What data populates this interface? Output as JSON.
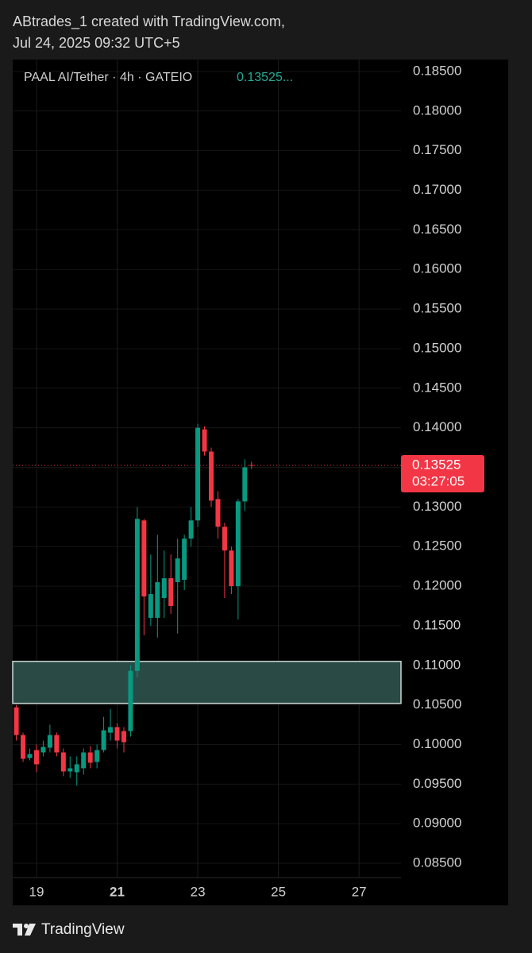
{
  "header": {
    "line1": "ABtrades_1 created with TradingView.com,",
    "line2": "Jul 24, 2025 09:32 UTC+5"
  },
  "chart_data": {
    "type": "candlestick",
    "legend": {
      "symbol": "PAAL AI/Tether · 4h · GATEIO",
      "last": "0.13525..."
    },
    "x": [
      18.5,
      18.6667,
      18.8333,
      19,
      19.1667,
      19.3333,
      19.5,
      19.6667,
      19.8333,
      20,
      20.1667,
      20.3333,
      20.5,
      20.6667,
      20.8333,
      21,
      21.1667,
      21.3333,
      21.5,
      21.6667,
      21.8333,
      22,
      22.1667,
      22.3333,
      22.5,
      22.6667,
      22.8333,
      23,
      23.1667,
      23.3333,
      23.5,
      23.6667,
      23.8333,
      24,
      24.1667,
      24.3333
    ],
    "open": [
      0.1047,
      0.1012,
      0.0983,
      0.0993,
      0.099,
      0.0996,
      0.1012,
      0.099,
      0.0966,
      0.0965,
      0.097,
      0.099,
      0.0978,
      0.0993,
      0.1015,
      0.1022,
      0.1017,
      0.1017,
      0.1093,
      0.1283,
      0.116,
      0.116,
      0.1185,
      0.121,
      0.1205,
      0.1208,
      0.126,
      0.1283,
      0.1398,
      0.137,
      0.131,
      0.1275,
      0.1245,
      0.12,
      0.1307,
      0.1353
    ],
    "high": [
      0.105,
      0.1015,
      0.0995,
      0.1,
      0.1005,
      0.1025,
      0.1015,
      0.0995,
      0.0985,
      0.0985,
      0.0995,
      0.0998,
      0.1,
      0.1035,
      0.1045,
      0.1027,
      0.1022,
      0.11,
      0.13,
      0.1285,
      0.124,
      0.1265,
      0.1245,
      0.124,
      0.126,
      0.1265,
      0.13,
      0.1405,
      0.1402,
      0.1375,
      0.132,
      0.128,
      0.125,
      0.131,
      0.136,
      0.1357
    ],
    "low": [
      0.1005,
      0.0978,
      0.098,
      0.0965,
      0.0985,
      0.099,
      0.0985,
      0.096,
      0.0958,
      0.0948,
      0.0962,
      0.097,
      0.097,
      0.099,
      0.1005,
      0.0995,
      0.099,
      0.101,
      0.1085,
      0.1138,
      0.115,
      0.1135,
      0.116,
      0.1165,
      0.114,
      0.1195,
      0.125,
      0.1275,
      0.1365,
      0.13,
      0.126,
      0.1185,
      0.119,
      0.1158,
      0.1295,
      0.1348
    ],
    "close": [
      0.1012,
      0.0982,
      0.0988,
      0.0975,
      0.0997,
      0.1012,
      0.099,
      0.0966,
      0.097,
      0.0975,
      0.099,
      0.0977,
      0.0993,
      0.1018,
      0.1022,
      0.1005,
      0.1003,
      0.1093,
      0.1285,
      0.1187,
      0.119,
      0.1205,
      0.121,
      0.1175,
      0.1235,
      0.126,
      0.1283,
      0.14,
      0.137,
      0.1308,
      0.1275,
      0.1245,
      0.12,
      0.1307,
      0.135,
      0.13525
    ],
    "up_color": "#089981",
    "down_color": "#f23645",
    "xlim": [
      18.41,
      28.04
    ],
    "xticks": [
      19,
      21,
      23,
      25,
      27
    ],
    "bold_xticks": [
      21
    ],
    "ylim": [
      0.0832,
      0.1865
    ],
    "yticks": [
      {
        "value": 0.085,
        "label": "0.08500"
      },
      {
        "value": 0.09,
        "label": "0.09000"
      },
      {
        "value": 0.095,
        "label": "0.09500"
      },
      {
        "value": 0.1,
        "label": "0.10000"
      },
      {
        "value": 0.105,
        "label": "0.10500"
      },
      {
        "value": 0.11,
        "label": "0.11000"
      },
      {
        "value": 0.115,
        "label": "0.11500"
      },
      {
        "value": 0.12,
        "label": "0.12000"
      },
      {
        "value": 0.125,
        "label": "0.12500"
      },
      {
        "value": 0.13,
        "label": "0.13000"
      },
      {
        "value": 0.135,
        "label": "0.13500"
      },
      {
        "value": 0.14,
        "label": "0.14000"
      },
      {
        "value": 0.145,
        "label": "0.14500"
      },
      {
        "value": 0.15,
        "label": "0.15000"
      },
      {
        "value": 0.155,
        "label": "0.15500"
      },
      {
        "value": 0.16,
        "label": "0.16000"
      },
      {
        "value": 0.165,
        "label": "0.16500"
      },
      {
        "value": 0.17,
        "label": "0.17000"
      },
      {
        "value": 0.175,
        "label": "0.17500"
      },
      {
        "value": 0.18,
        "label": "0.18000"
      },
      {
        "value": 0.185,
        "label": "0.18500"
      }
    ],
    "grid": true,
    "zone": {
      "top": 0.1105,
      "bottom": 0.1052,
      "color": "#2a4b45"
    },
    "last_price": 0.13525,
    "countdown": "03:27:05"
  },
  "footer": {
    "brand": "TradingView"
  }
}
